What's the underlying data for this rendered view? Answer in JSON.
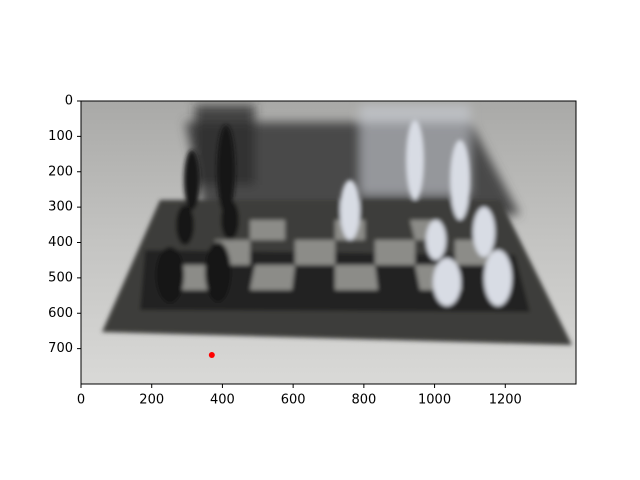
{
  "chart_data": {
    "type": "scatter",
    "x": [
      370
    ],
    "series": [
      {
        "color": "#ff0000",
        "values": [
          718
        ]
      }
    ],
    "xlim": [
      0,
      1400
    ],
    "ylim": [
      800,
      0
    ],
    "xticks": [
      0,
      200,
      400,
      600,
      800,
      1000,
      1200
    ],
    "yticks": [
      0,
      100,
      200,
      300,
      400,
      500,
      600,
      700
    ]
  }
}
